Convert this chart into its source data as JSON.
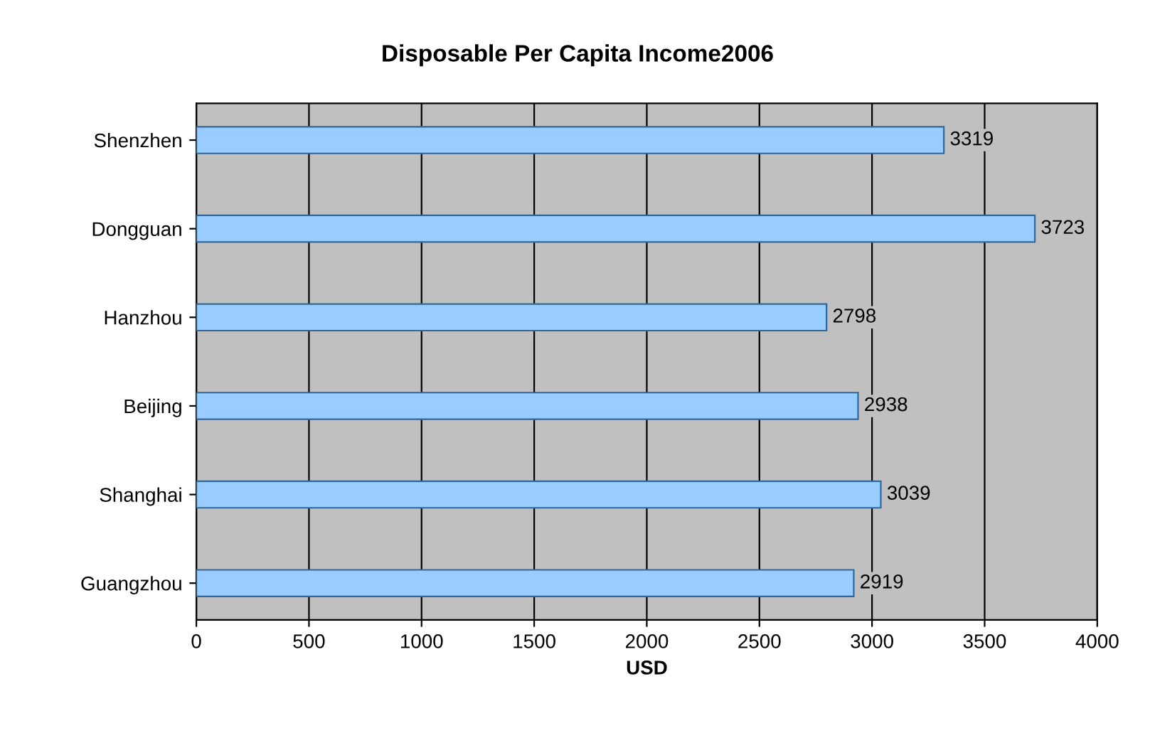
{
  "chart_data": {
    "type": "bar",
    "orientation": "horizontal",
    "title": "Disposable Per Capita Income2006",
    "xlabel": "USD",
    "categories": [
      "Shenzhen",
      "Dongguan",
      "Hanzhou",
      "Beijing",
      "Shanghai",
      "Guangzhou"
    ],
    "values": [
      3319,
      3723,
      2798,
      2938,
      3039,
      2919
    ],
    "color": "#99ccff",
    "xlim": [
      0,
      4000
    ],
    "xticks": [
      0,
      500,
      1000,
      1500,
      2000,
      2500,
      3000,
      3500,
      4000
    ],
    "grid": "x",
    "data_labels": true
  }
}
